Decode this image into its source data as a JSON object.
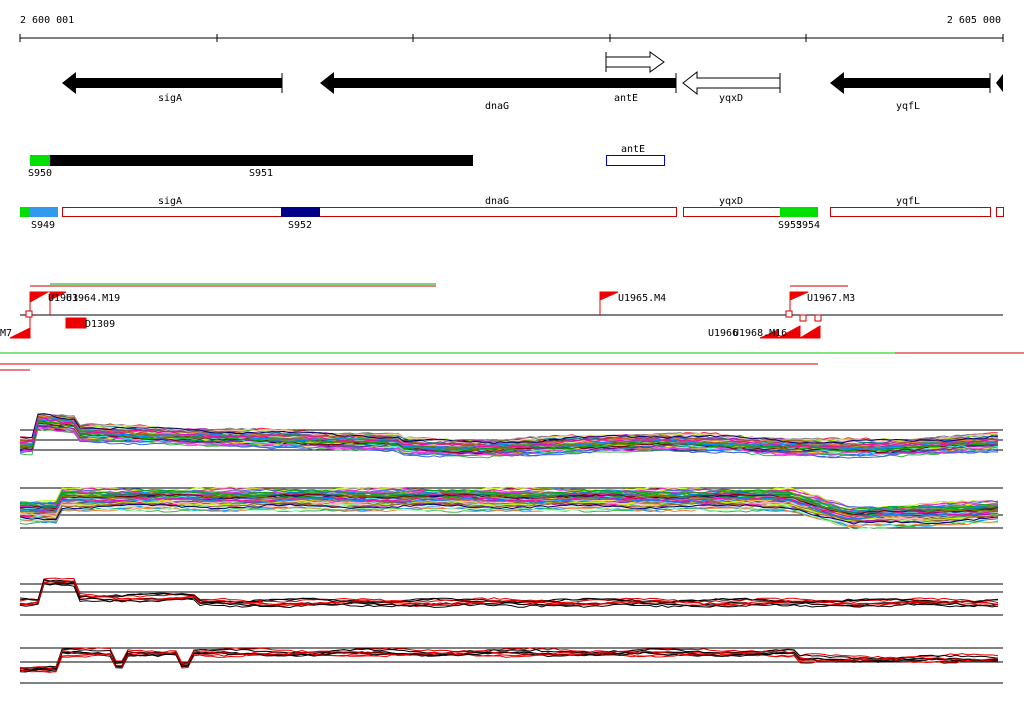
{
  "scale": {
    "start": "2 600 001",
    "end": "2 605 000"
  },
  "genes": [
    {
      "label": "sigA"
    },
    {
      "label": "dnaG"
    },
    {
      "label": "antE"
    },
    {
      "label": "yqxD"
    },
    {
      "label": "yqfL"
    }
  ],
  "segments_top": [
    {
      "label": "S950"
    },
    {
      "label": "S951"
    },
    {
      "label": "antE"
    }
  ],
  "segments": [
    {
      "label": "sigA"
    },
    {
      "label": "dnaG"
    },
    {
      "label": "yqxD"
    },
    {
      "label": "yqfL"
    },
    {
      "label": "S949"
    },
    {
      "label": "S952"
    },
    {
      "label": "S953"
    },
    {
      "label": "S954"
    }
  ],
  "features": [
    {
      "label": "U1963"
    },
    {
      "label": "U1964.M19"
    },
    {
      "label": "U1965.M4"
    },
    {
      "label": "U1967.M3"
    },
    {
      "label": "D1309"
    },
    {
      "label": "M7"
    },
    {
      "label": "U1966"
    },
    {
      "label": "U1968.M16"
    }
  ]
}
